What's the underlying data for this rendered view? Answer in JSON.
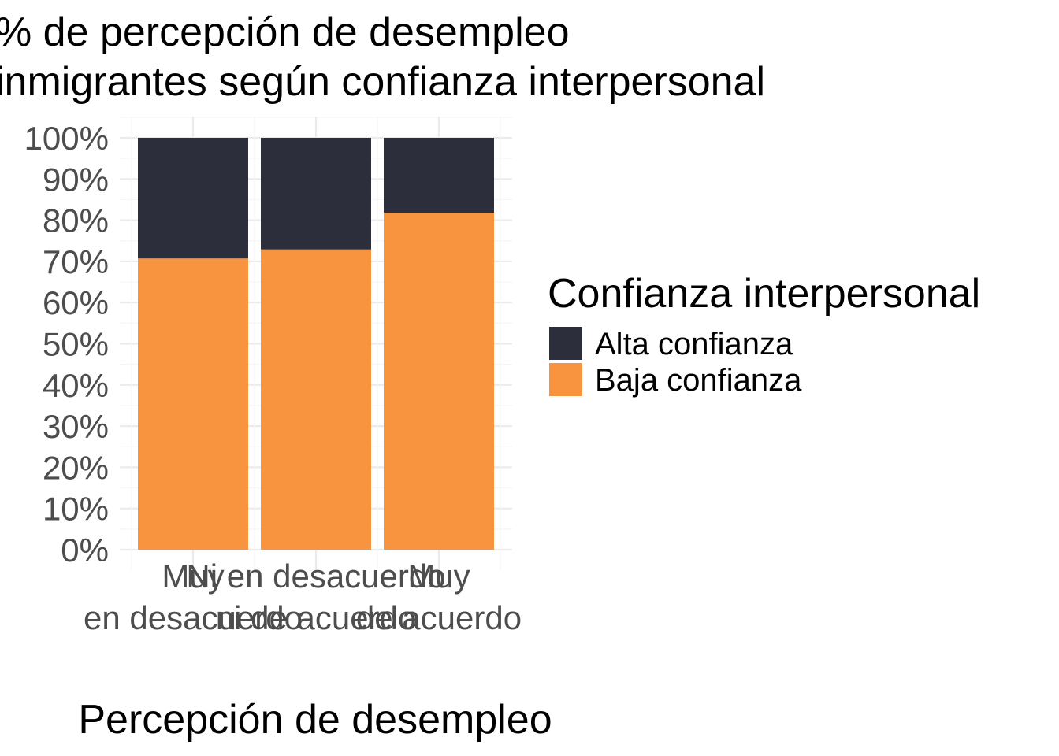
{
  "chart_data": {
    "type": "bar",
    "stacked": true,
    "title_lines": [
      "% de percepción de desempleo",
      "inmigrantes según confianza interpersonal"
    ],
    "xlabel": "Percepción de desempleo",
    "ylabel": "",
    "categories": [
      [
        "Muy",
        "en desacuerdo"
      ],
      [
        "Ni en desacuerdo",
        "ni de acuerdo"
      ],
      [
        "Muy",
        "de acuerdo"
      ]
    ],
    "ylim": [
      0,
      1
    ],
    "y_ticks": [
      "0%",
      "10%",
      "20%",
      "30%",
      "40%",
      "50%",
      "60%",
      "70%",
      "80%",
      "90%",
      "100%"
    ],
    "legend_title": "Confianza interpersonal",
    "legend_position": "right",
    "grid": true,
    "series": [
      {
        "name": "Baja confianza",
        "color": "#f8933f",
        "values": [
          0.707,
          0.729,
          0.818
        ]
      },
      {
        "name": "Alta confianza",
        "color": "#2c2f3b",
        "values": [
          0.293,
          0.271,
          0.182
        ]
      }
    ],
    "legend_order": [
      "Alta confianza",
      "Baja confianza"
    ]
  }
}
